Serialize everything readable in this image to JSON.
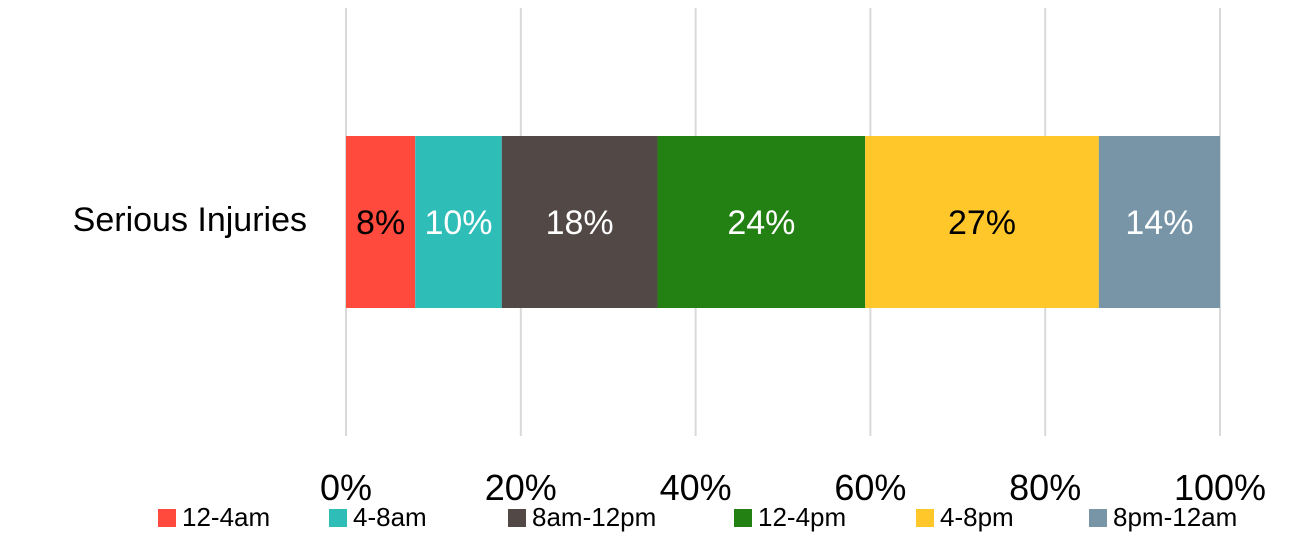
{
  "chart_data": {
    "type": "bar",
    "orientation": "horizontal",
    "stacked": "percent",
    "categories": [
      "Serious Injuries"
    ],
    "series": [
      {
        "name": "12-4am",
        "values": [
          8
        ],
        "label": "8%",
        "color": "#ff4a3d",
        "label_color": "#000000"
      },
      {
        "name": "4-8am",
        "values": [
          10
        ],
        "label": "10%",
        "color": "#2ebdb7",
        "label_color": "#ffffff"
      },
      {
        "name": "8am-12pm",
        "values": [
          18
        ],
        "label": "18%",
        "color": "#524846",
        "label_color": "#ffffff"
      },
      {
        "name": "12-4pm",
        "values": [
          24
        ],
        "label": "24%",
        "color": "#238012",
        "label_color": "#ffffff"
      },
      {
        "name": "4-8pm",
        "values": [
          27
        ],
        "label": "27%",
        "color": "#ffc72a",
        "label_color": "#000000"
      },
      {
        "name": "8pm-12am",
        "values": [
          14
        ],
        "label": "14%",
        "color": "#7895a8",
        "label_color": "#ffffff"
      }
    ],
    "x_ticks": [
      "0%",
      "20%",
      "40%",
      "60%",
      "80%",
      "100%"
    ],
    "xlim": [
      0,
      100
    ],
    "grid": "vertical",
    "legend_position": "bottom",
    "title": "",
    "xlabel": "",
    "ylabel": ""
  }
}
